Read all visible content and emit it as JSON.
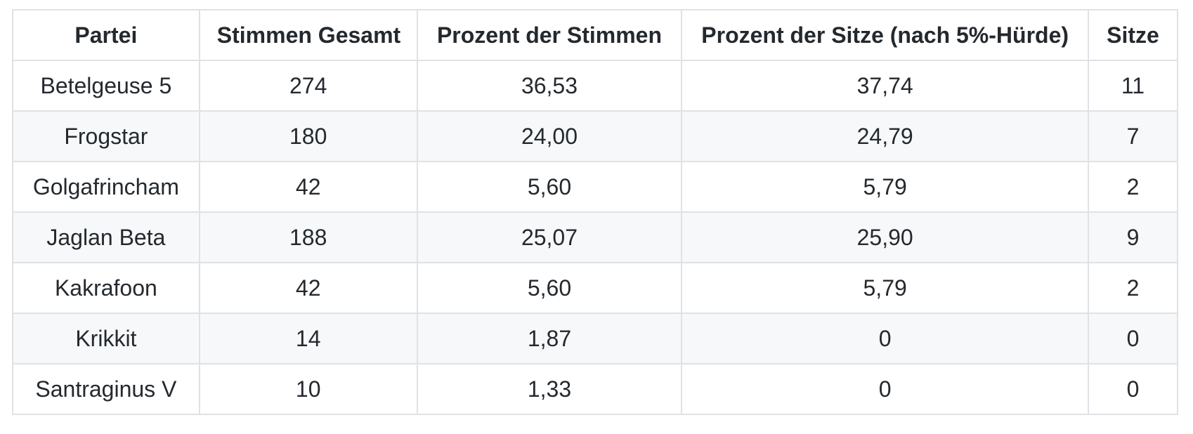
{
  "colors": {
    "border": "#dfe2e5",
    "row_stripe": "#f6f8fa",
    "text": "#24292e",
    "background": "#ffffff"
  },
  "table": {
    "headers": [
      "Partei",
      "Stimmen Gesamt",
      "Prozent der Stimmen",
      "Prozent der Sitze (nach 5%-Hürde)",
      "Sitze"
    ],
    "rows": [
      [
        "Betelgeuse 5",
        "274",
        "36,53",
        "37,74",
        "11"
      ],
      [
        "Frogstar",
        "180",
        "24,00",
        "24,79",
        "7"
      ],
      [
        "Golgafrincham",
        "42",
        "5,60",
        "5,79",
        "2"
      ],
      [
        "Jaglan Beta",
        "188",
        "25,07",
        "25,90",
        "9"
      ],
      [
        "Kakrafoon",
        "42",
        "5,60",
        "5,79",
        "2"
      ],
      [
        "Krikkit",
        "14",
        "1,87",
        "0",
        "0"
      ],
      [
        "Santraginus V",
        "10",
        "1,33",
        "0",
        "0"
      ]
    ]
  }
}
